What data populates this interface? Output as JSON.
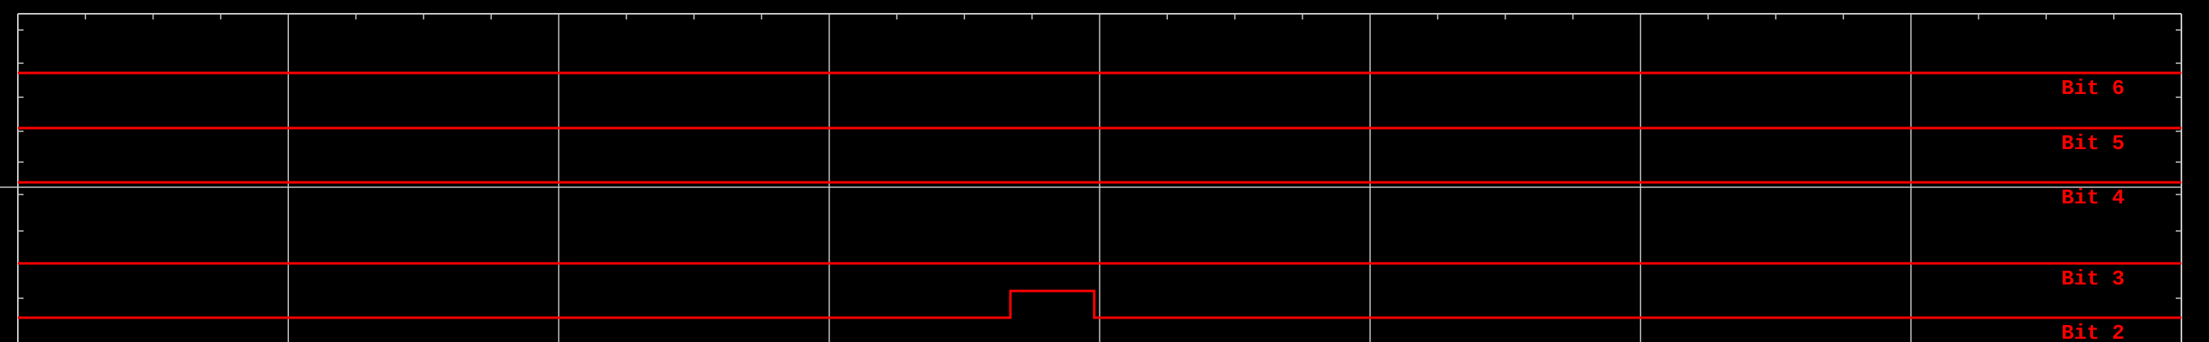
{
  "display": {
    "background": "#000000",
    "grid_color": "#c8c8c8",
    "trace_color": "#ff0000",
    "label_color": "#ff0000"
  },
  "channels": [
    {
      "label": "Bit 6",
      "state": "low",
      "pulses": []
    },
    {
      "label": "Bit 5",
      "state": "low",
      "pulses": []
    },
    {
      "label": "Bit 4",
      "state": "low",
      "pulses": []
    },
    {
      "label": "Bit 3",
      "state": "low",
      "pulses": []
    },
    {
      "label": "Bit 2",
      "state": "low",
      "pulses": [
        {
          "start_div": 3.67,
          "end_div": 3.98
        }
      ]
    }
  ],
  "divisions": {
    "horizontal": 8
  }
}
